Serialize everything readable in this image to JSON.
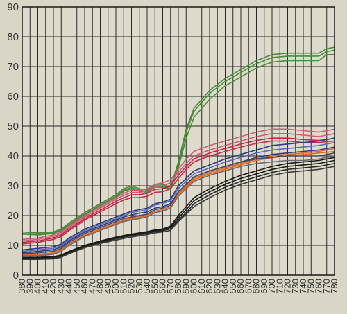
{
  "chart_data": {
    "type": "line",
    "title": "",
    "xlabel": "",
    "ylabel": "",
    "xlim": [
      380,
      780
    ],
    "ylim": [
      0,
      90
    ],
    "grid": true,
    "yticks": [
      0,
      10,
      20,
      30,
      40,
      50,
      60,
      70,
      80,
      90
    ],
    "xticks": [
      380,
      390,
      400,
      410,
      420,
      430,
      440,
      450,
      460,
      470,
      480,
      490,
      500,
      510,
      520,
      530,
      540,
      550,
      560,
      570,
      580,
      590,
      600,
      610,
      620,
      630,
      640,
      650,
      660,
      670,
      680,
      690,
      700,
      710,
      720,
      730,
      740,
      750,
      760,
      770,
      780
    ],
    "x": [
      380,
      400,
      420,
      430,
      440,
      460,
      480,
      500,
      510,
      520,
      530,
      540,
      550,
      560,
      570,
      580,
      590,
      600,
      620,
      640,
      660,
      680,
      700,
      720,
      740,
      760,
      770,
      780
    ],
    "series": [
      {
        "color": "#4a8a3a",
        "values": [
          14.5,
          14.2,
          14.5,
          15.5,
          17.5,
          21,
          24,
          27,
          29,
          30,
          29,
          28.5,
          30.5,
          30.5,
          29.5,
          38,
          49,
          56,
          62,
          66,
          69,
          72,
          74,
          74.5,
          74.5,
          74.5,
          76,
          76.5
        ]
      },
      {
        "color": "#4a8a3a",
        "values": [
          14,
          13.8,
          14.2,
          15.2,
          17,
          20.5,
          23.5,
          26.5,
          28.5,
          29.5,
          28.5,
          28,
          30,
          30,
          29,
          37,
          48,
          55,
          61,
          65,
          68,
          71,
          73,
          73.5,
          73.5,
          73.5,
          75,
          75.5
        ]
      },
      {
        "color": "#4a8a3a",
        "values": [
          13.8,
          13.5,
          14,
          15,
          16.8,
          20.2,
          23.2,
          26.2,
          28.2,
          29,
          28.2,
          27.8,
          29.5,
          29.5,
          28.8,
          36,
          46,
          53,
          59,
          63.5,
          66.5,
          69.5,
          71.5,
          72,
          72,
          72,
          74,
          74
        ]
      },
      {
        "color": "#d05a78",
        "values": [
          12,
          12.5,
          13.5,
          14.5,
          16.5,
          20,
          23,
          26,
          27.5,
          28.5,
          28.5,
          29,
          30.5,
          31,
          32,
          35.5,
          39,
          41.5,
          43.5,
          45,
          46.5,
          48,
          49,
          49,
          48.5,
          48,
          48.5,
          49
        ]
      },
      {
        "color": "#d05a78",
        "values": [
          11.5,
          12,
          13,
          14,
          16,
          19.5,
          22.5,
          25.5,
          26.8,
          27.8,
          27.8,
          28.2,
          29.5,
          30,
          31,
          34.5,
          37.5,
          40,
          42,
          43.5,
          45,
          46.5,
          47.5,
          47.5,
          47,
          46.5,
          47,
          47.5
        ]
      },
      {
        "color": "#c42a4a",
        "values": [
          11,
          11.5,
          12.5,
          13.5,
          15.5,
          19,
          21.8,
          24.8,
          26,
          27,
          27,
          27.5,
          28.8,
          29,
          30,
          33.5,
          36.5,
          39,
          41,
          42.5,
          44,
          45.2,
          46,
          46,
          45.5,
          45.2,
          45.5,
          46
        ]
      },
      {
        "color": "#c42a4a",
        "values": [
          10.5,
          11,
          12,
          13,
          15,
          18.5,
          21.2,
          24,
          25.2,
          26,
          26,
          26.5,
          27.8,
          28,
          29,
          32.5,
          35.5,
          38,
          40,
          41.5,
          43,
          44.2,
          45,
          45,
          44.5,
          44.5,
          44.8,
          45
        ]
      },
      {
        "color": "#2e3a8a",
        "values": [
          8.5,
          9,
          9.5,
          10.5,
          12.5,
          15.5,
          17.5,
          19.5,
          20.5,
          21.5,
          22,
          22.5,
          24,
          24.5,
          25.5,
          30,
          32.5,
          35,
          37,
          39,
          40.5,
          42,
          43.5,
          44,
          44.5,
          45,
          45.5,
          46
        ]
      },
      {
        "color": "#5a6ab0",
        "values": [
          8,
          8.5,
          9,
          10,
          12,
          15,
          17,
          19,
          20,
          21,
          21.5,
          22,
          23.5,
          24,
          25,
          29,
          31.5,
          34,
          36,
          38,
          39.5,
          41,
          42,
          42.5,
          43,
          43.5,
          44,
          44.5
        ]
      },
      {
        "color": "#2e3a8a",
        "values": [
          7.5,
          8,
          8.5,
          9.5,
          11.5,
          14.5,
          16.5,
          18.5,
          19.5,
          20.2,
          20.8,
          21.2,
          22.5,
          23,
          24,
          28,
          30.5,
          33,
          35,
          36.5,
          38,
          39.5,
          40.5,
          41,
          41.5,
          42,
          42.5,
          43
        ]
      },
      {
        "color": "#e26a1e",
        "values": [
          7,
          7,
          7.5,
          8.5,
          10.5,
          13.5,
          15.5,
          17.5,
          18.5,
          19.2,
          19.8,
          20.2,
          21.5,
          22,
          23,
          27.5,
          30,
          32.5,
          34.5,
          36,
          37.5,
          39,
          40,
          40.5,
          41,
          41.5,
          42,
          42.5
        ]
      },
      {
        "color": "#e26a1e",
        "values": [
          6.8,
          6.8,
          7.3,
          8.2,
          10.2,
          13.2,
          15.2,
          17.2,
          18.2,
          18.8,
          19.4,
          19.8,
          21,
          21.5,
          22.5,
          27,
          29.5,
          32,
          34,
          35.5,
          37,
          38.5,
          39.5,
          40,
          40.5,
          41,
          41.2,
          41.5
        ]
      },
      {
        "color": "#4a4a5a",
        "values": [
          7.2,
          7.5,
          8,
          9,
          11,
          14,
          16,
          18,
          19,
          19.5,
          20,
          20.5,
          22,
          22.5,
          23.5,
          28,
          30.5,
          33,
          35,
          36.5,
          38,
          39,
          39.5,
          40,
          40,
          40,
          40.5,
          41
        ]
      },
      {
        "color": "#6a6a7a",
        "values": [
          6.5,
          6.5,
          7,
          8,
          10,
          13,
          15,
          17,
          18,
          18.5,
          19,
          19.5,
          21,
          21.5,
          22.5,
          26.5,
          29,
          31.5,
          33.5,
          35,
          36.5,
          37.5,
          38,
          38.5,
          38.5,
          39,
          39.5,
          40
        ]
      },
      {
        "color": "#1a1a1a",
        "values": [
          6,
          6,
          6.2,
          6.8,
          8,
          10,
          11.5,
          12.8,
          13.3,
          13.8,
          14.2,
          14.6,
          15.2,
          15.5,
          16.5,
          20,
          23,
          26,
          29,
          31.5,
          33.5,
          35,
          36.5,
          37.5,
          38,
          38.5,
          39,
          39.5
        ]
      },
      {
        "color": "#1a1a1a",
        "values": [
          5.8,
          5.8,
          6,
          6.5,
          7.7,
          9.7,
          11.2,
          12.5,
          13,
          13.5,
          13.9,
          14.3,
          14.9,
          15.2,
          16,
          19.2,
          22,
          25,
          28,
          30.5,
          32.5,
          34,
          35.5,
          36.5,
          37,
          37.5,
          38,
          38.5
        ]
      },
      {
        "color": "#2a2a2a",
        "values": [
          5.5,
          5.5,
          5.8,
          6.2,
          7.4,
          9.4,
          10.9,
          12.2,
          12.7,
          13.2,
          13.6,
          14,
          14.6,
          14.9,
          15.5,
          18.5,
          21,
          24,
          27,
          29.5,
          31.5,
          33,
          34.5,
          35.5,
          36,
          36.5,
          37,
          37.5
        ]
      },
      {
        "color": "#3a3a3a",
        "values": [
          5.3,
          5.3,
          5.5,
          6,
          7.2,
          9.2,
          10.6,
          11.8,
          12.3,
          12.8,
          13.2,
          13.6,
          14.2,
          14.5,
          15,
          18,
          20.5,
          23,
          26,
          28.5,
          30.5,
          32,
          33.5,
          34.5,
          35,
          35.5,
          36,
          36.5
        ]
      }
    ]
  }
}
